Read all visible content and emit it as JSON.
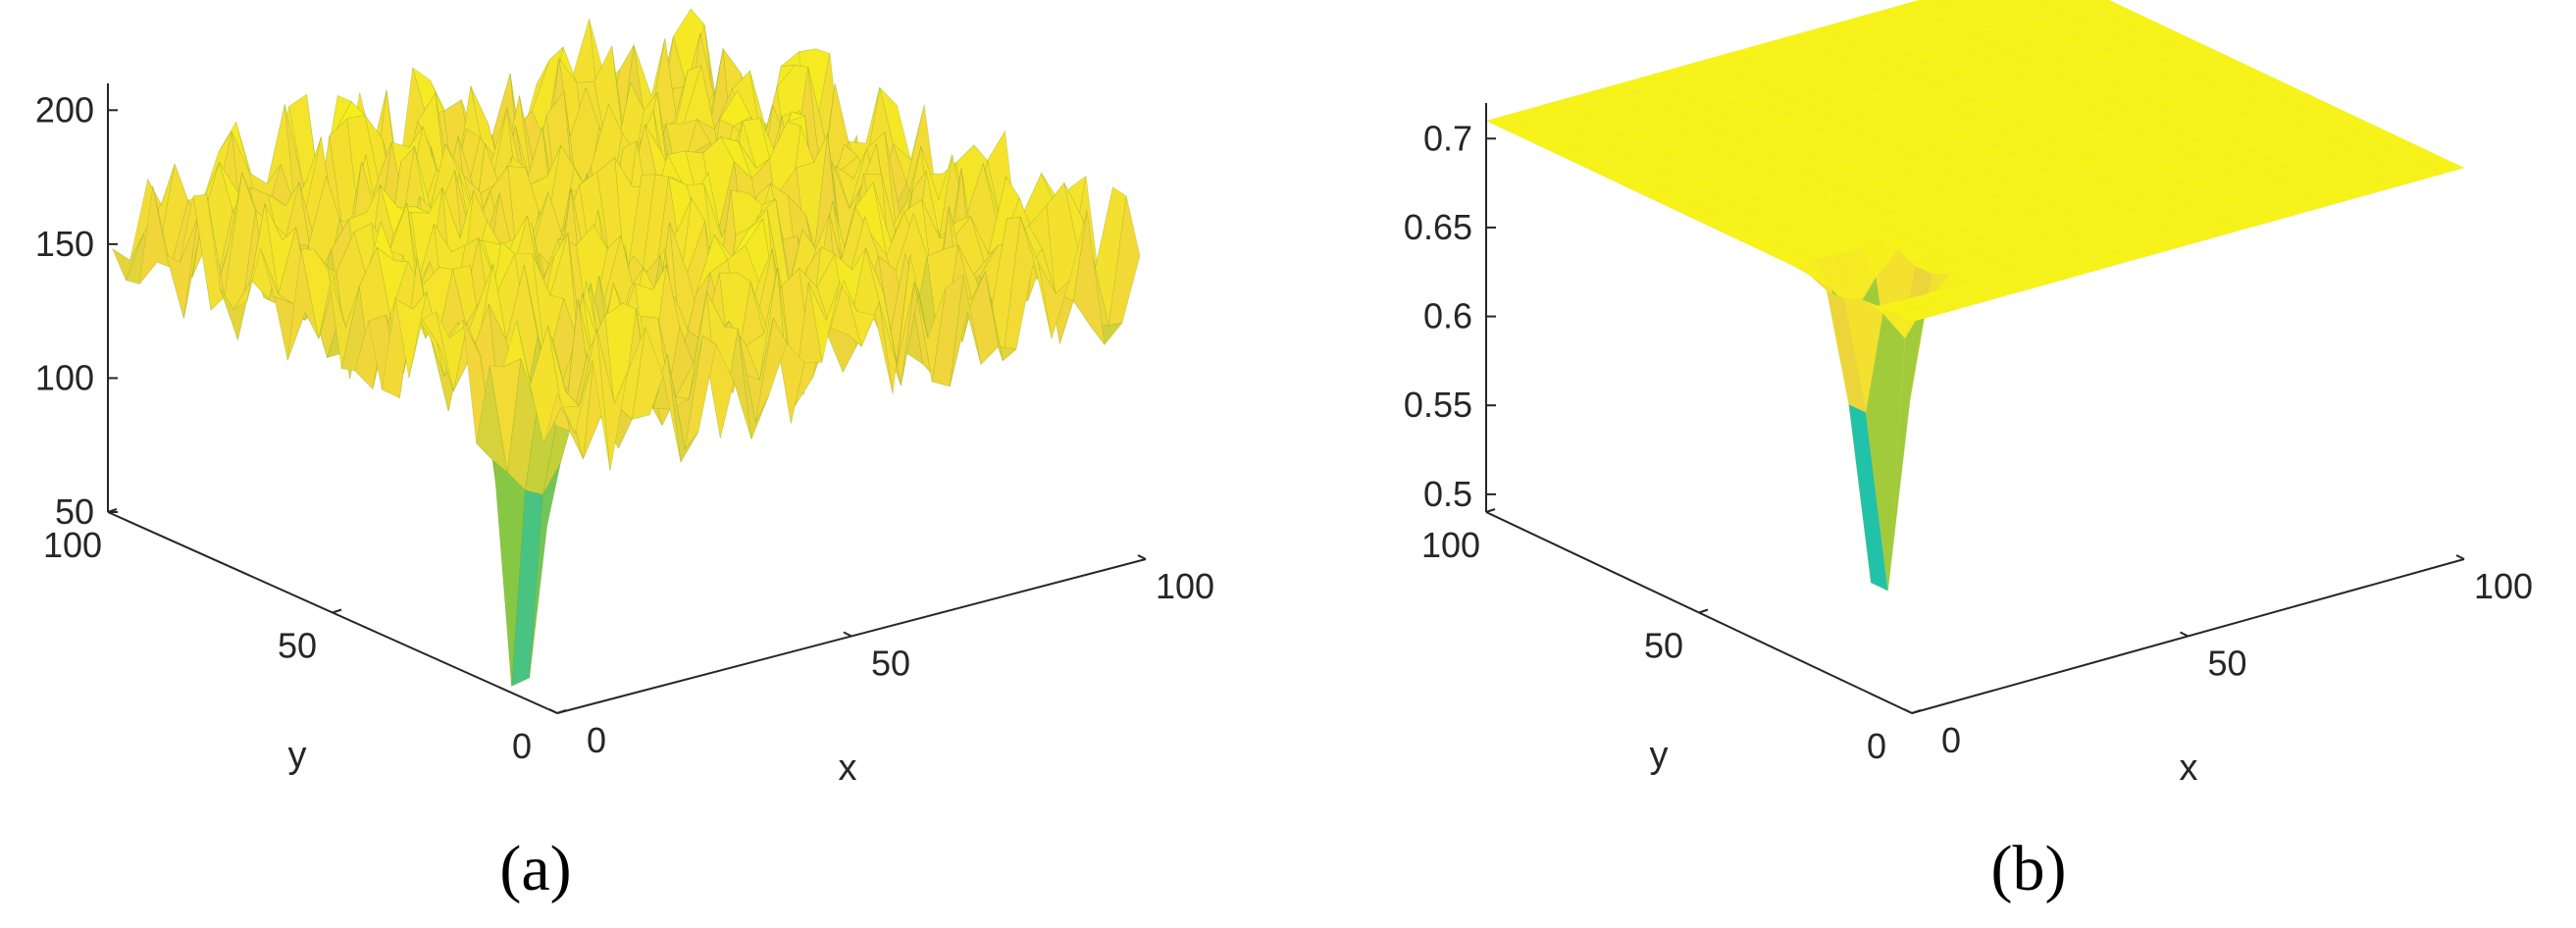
{
  "chart_data": [
    {
      "type": "surface",
      "caption": "(a)",
      "xlabel": "x",
      "ylabel": "y",
      "zlabel": "",
      "xlim": [
        0,
        100
      ],
      "ylim": [
        0,
        100
      ],
      "zlim": [
        50,
        210
      ],
      "x_ticks": [
        "0",
        "50",
        "100"
      ],
      "y_ticks": [
        "0",
        "50",
        "100"
      ],
      "z_ticks": [
        "50",
        "100",
        "150",
        "200"
      ],
      "surface_level": 160,
      "surface_noise_range": [
        130,
        200
      ],
      "dip_location": [
        8,
        18
      ],
      "dip_minimum": 50,
      "colormap": [
        "#3e26a8",
        "#2d8cf5",
        "#19c0b3",
        "#8dc83c",
        "#f2d63a",
        "#f9fb0e"
      ],
      "grid": false
    },
    {
      "type": "surface",
      "caption": "(b)",
      "xlabel": "x",
      "ylabel": "y",
      "zlabel": "",
      "xlim": [
        0,
        100
      ],
      "ylim": [
        0,
        100
      ],
      "zlim": [
        0.49,
        0.72
      ],
      "x_ticks": [
        "0",
        "50",
        "100"
      ],
      "y_ticks": [
        "0",
        "50",
        "100"
      ],
      "z_ticks": [
        "0.5",
        "0.55",
        "0.6",
        "0.65",
        "0.7"
      ],
      "surface_level": 0.71,
      "dip_location": [
        8,
        18
      ],
      "dip_minimum": 0.49,
      "colormap": [
        "#3e26a8",
        "#2d8cf5",
        "#19c0b3",
        "#8dc83c",
        "#f2d63a",
        "#f9fb0e"
      ],
      "grid": false
    }
  ]
}
